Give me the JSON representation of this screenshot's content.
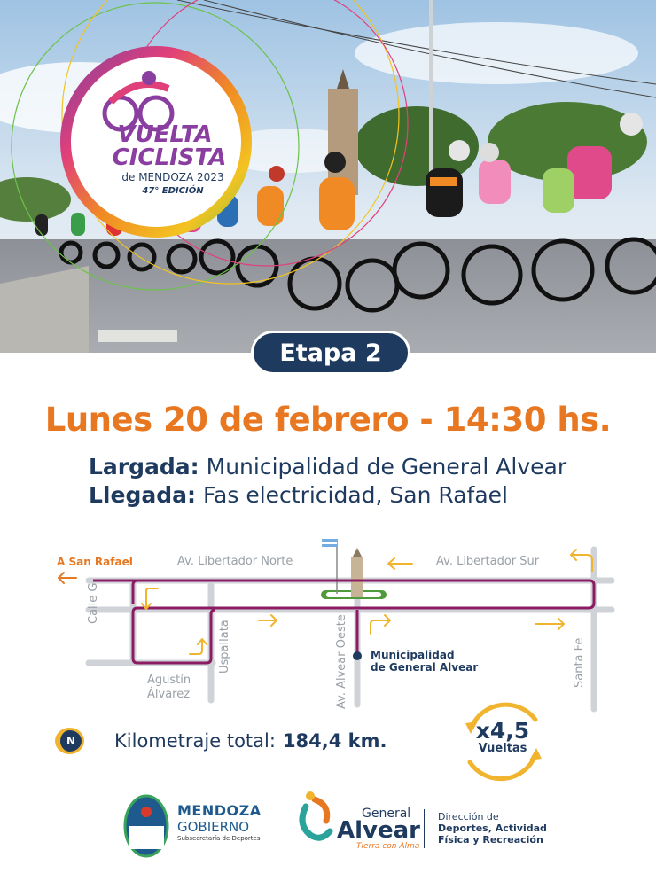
{
  "hero": {
    "logo": {
      "line1": "VUELTA",
      "line2": "CICLISTA",
      "line3": "de MENDOZA 2023",
      "line4": "47° EDICIÓN"
    }
  },
  "stage": {
    "label": "Etapa 2"
  },
  "date": {
    "text": "Lunes 20 de febrero - 14:30 hs."
  },
  "route": {
    "start_label": "Largada:",
    "start_value": "Municipalidad de General Alvear",
    "finish_label": "Llegada:",
    "finish_value": "Fas electricidad, San Rafael"
  },
  "map": {
    "to_san_rafael": "A San Rafael",
    "streets": {
      "libertador_norte": "Av. Libertador Norte",
      "libertador_sur": "Av. Libertador Sur",
      "calle_g": "Calle G",
      "uspallata": "Uspallata",
      "agustin": "Agustín",
      "alvarez": "Álvarez",
      "alvear_oeste": "Av. Alvear Oeste",
      "santa_fe": "Santa Fe"
    },
    "poi_line1": "Municipalidad",
    "poi_line2": "de General Alvear",
    "north_icon": "N"
  },
  "distance": {
    "label": "Kilometraje total:",
    "value": "184,4 km."
  },
  "laps": {
    "value": "x4,5",
    "label": "Vueltas"
  },
  "footer": {
    "mendoza_line1": "MENDOZA",
    "mendoza_line2": "GOBIERNO",
    "mendoza_line3": "Subsecretaría de Deportes",
    "alvear_line1": "General",
    "alvear_line2": "Alvear",
    "alvear_line3": "Tierra con Alma",
    "dir_line1": "Dirección de",
    "dir_line2": "Deportes, Actividad",
    "dir_line3": "Física y Recreación"
  },
  "colors": {
    "navy": "#1f3a5f",
    "orange": "#e87722",
    "route_purple": "#8b1c62",
    "arrow_yellow": "#f1b42f",
    "road_gray": "#cfd3d8"
  }
}
